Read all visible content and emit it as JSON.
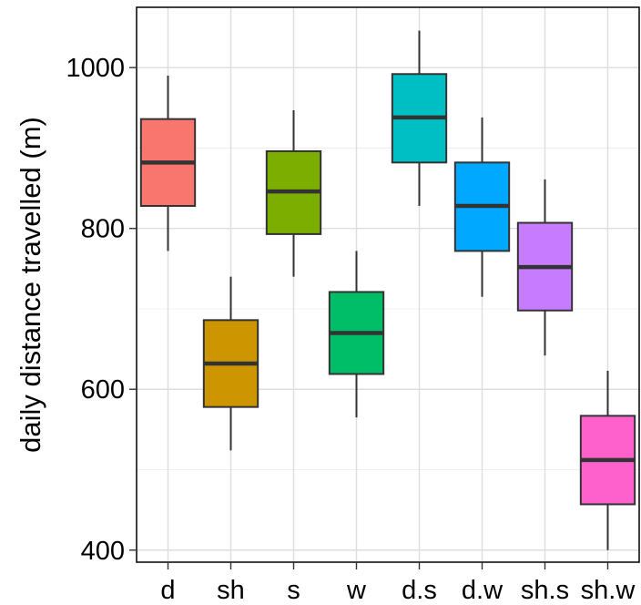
{
  "chart_data": {
    "type": "box",
    "title": "",
    "xlabel": "",
    "ylabel": "daily distance travelled (m)",
    "ylim": [
      385,
      1075
    ],
    "yticks": [
      400,
      600,
      800,
      1000
    ],
    "grid": true,
    "categories": [
      "d",
      "sh",
      "s",
      "w",
      "d.s",
      "d.w",
      "sh.s",
      "sh.w"
    ],
    "colors": [
      "#F8766D",
      "#CD9600",
      "#7CAE00",
      "#00BE67",
      "#00BFC4",
      "#00A9FF",
      "#C77CFF",
      "#FF61CC"
    ],
    "boxes": [
      {
        "min": 772,
        "q1": 828,
        "median": 882,
        "q3": 936,
        "max": 990
      },
      {
        "min": 524,
        "q1": 578,
        "median": 632,
        "q3": 686,
        "max": 740
      },
      {
        "min": 740,
        "q1": 793,
        "median": 846,
        "q3": 896,
        "max": 947
      },
      {
        "min": 565,
        "q1": 619,
        "median": 670,
        "q3": 721,
        "max": 772
      },
      {
        "min": 828,
        "q1": 882,
        "median": 938,
        "q3": 992,
        "max": 1046
      },
      {
        "min": 715,
        "q1": 772,
        "median": 828,
        "q3": 882,
        "max": 938
      },
      {
        "min": 642,
        "q1": 698,
        "median": 752,
        "q3": 807,
        "max": 861
      },
      {
        "min": 400,
        "q1": 457,
        "median": 512,
        "q3": 567,
        "max": 623
      }
    ]
  }
}
